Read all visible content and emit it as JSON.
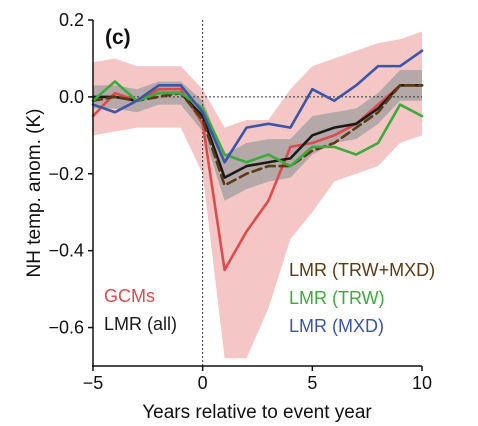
{
  "chart_data": {
    "type": "line",
    "panel_label": "(c)",
    "xlabel": "Years relative to event year",
    "ylabel": "NH temp. anom. (K)",
    "xlim": [
      -5,
      10
    ],
    "ylim": [
      -0.7,
      0.2
    ],
    "xticks": [
      -5,
      0,
      5,
      10
    ],
    "yticks": [
      -0.6,
      -0.4,
      -0.2,
      0.0,
      0.2
    ],
    "ytick_labels": [
      "−0.6",
      "−0.4",
      "−0.2",
      "0.0",
      "0.2"
    ],
    "xtick_labels": [
      "−5",
      "0",
      "5",
      "10"
    ],
    "grid": false,
    "x": [
      -5,
      -4,
      -3,
      -2,
      -1,
      0,
      1,
      2,
      3,
      4,
      5,
      6,
      7,
      8,
      9,
      10
    ],
    "series": [
      {
        "name": "GCMs",
        "color": "#de4b4b",
        "style": "solid",
        "values": [
          -0.05,
          0.01,
          -0.01,
          0.02,
          0.02,
          -0.07,
          -0.45,
          -0.35,
          -0.27,
          -0.13,
          -0.12,
          -0.1,
          -0.07,
          -0.02,
          0.03,
          0.03
        ],
        "band_lower": [
          -0.1,
          -0.09,
          -0.08,
          -0.08,
          -0.08,
          -0.2,
          -0.68,
          -0.68,
          -0.55,
          -0.37,
          -0.3,
          -0.22,
          -0.2,
          -0.18,
          -0.12,
          -0.1
        ],
        "band_upper": [
          0.09,
          0.1,
          0.08,
          0.08,
          0.08,
          0.02,
          -0.08,
          -0.06,
          -0.06,
          0.02,
          0.08,
          0.1,
          0.12,
          0.14,
          0.15,
          0.17
        ],
        "band_color": "#f4c0c0"
      },
      {
        "name": "LMR (all)",
        "color": "#1a1a1a",
        "style": "solid",
        "values": [
          0.0,
          0.0,
          -0.01,
          0.01,
          0.01,
          -0.05,
          -0.21,
          -0.18,
          -0.17,
          -0.16,
          -0.1,
          -0.08,
          -0.07,
          -0.03,
          0.03,
          0.03
        ],
        "band_lower": [
          -0.03,
          -0.03,
          -0.04,
          -0.02,
          -0.02,
          -0.09,
          -0.27,
          -0.24,
          -0.22,
          -0.21,
          -0.15,
          -0.12,
          -0.11,
          -0.07,
          -0.01,
          -0.01
        ],
        "band_upper": [
          0.03,
          0.03,
          0.02,
          0.04,
          0.04,
          -0.01,
          -0.15,
          -0.12,
          -0.11,
          -0.11,
          -0.05,
          -0.04,
          -0.03,
          0.01,
          0.07,
          0.07
        ],
        "band_color": "#9e9e9e"
      },
      {
        "name": "LMR (TRW+MXD)",
        "color": "#5c3a12",
        "style": "dashed",
        "values": [
          -0.01,
          0.0,
          -0.01,
          0.0,
          0.01,
          -0.06,
          -0.23,
          -0.2,
          -0.18,
          -0.18,
          -0.14,
          -0.12,
          -0.08,
          -0.04,
          0.03,
          0.03
        ]
      },
      {
        "name": "LMR (TRW)",
        "color": "#3bab3b",
        "style": "solid",
        "values": [
          -0.01,
          0.04,
          -0.01,
          0.01,
          0.01,
          -0.03,
          -0.15,
          -0.17,
          -0.15,
          -0.18,
          -0.13,
          -0.13,
          -0.15,
          -0.12,
          -0.02,
          -0.05
        ]
      },
      {
        "name": "LMR (MXD)",
        "color": "#3b56a6",
        "style": "solid",
        "values": [
          -0.02,
          -0.04,
          -0.01,
          0.03,
          0.03,
          -0.04,
          -0.17,
          -0.08,
          -0.07,
          -0.08,
          0.02,
          -0.01,
          0.03,
          0.08,
          0.08,
          0.12
        ]
      }
    ],
    "legend": {
      "left": [
        {
          "label": "GCMs",
          "color": "#de4b4b"
        },
        {
          "label": "LMR (all)",
          "color": "#1a1a1a"
        }
      ],
      "right": [
        {
          "label": "LMR (TRW+MXD)",
          "color": "#5c3a12"
        },
        {
          "label": "LMR (TRW)",
          "color": "#3bab3b"
        },
        {
          "label": "LMR (MXD)",
          "color": "#3b56a6"
        }
      ]
    },
    "reference_lines": {
      "x": 0,
      "y": 0.0,
      "style": "dotted"
    }
  }
}
